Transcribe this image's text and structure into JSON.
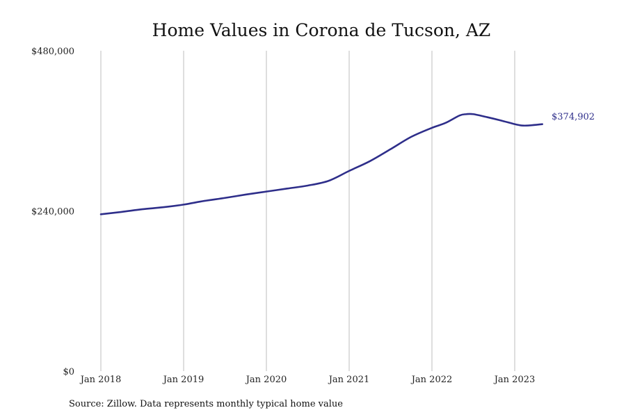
{
  "colors": {
    "line": "#2e2e8a",
    "grid": "#bdbdbd",
    "text": "#222222"
  },
  "chart_data": {
    "type": "line",
    "title": "Home Values in Corona de Tucson, AZ",
    "xlabel": "",
    "ylabel": "",
    "ylim": [
      0,
      480000
    ],
    "xlim": [
      "2018-01",
      "2023-07"
    ],
    "grid": "vertical",
    "legend": "none",
    "y_ticks": [
      {
        "value": 0,
        "label": "$0"
      },
      {
        "value": 240000,
        "label": "$240,000"
      },
      {
        "value": 480000,
        "label": "$480,000"
      }
    ],
    "x_ticks": [
      {
        "date": "2018-01",
        "label": "Jan 2018"
      },
      {
        "date": "2019-01",
        "label": "Jan 2019"
      },
      {
        "date": "2020-01",
        "label": "Jan 2020"
      },
      {
        "date": "2021-01",
        "label": "Jan 2021"
      },
      {
        "date": "2022-01",
        "label": "Jan 2022"
      },
      {
        "date": "2023-01",
        "label": "Jan 2023"
      }
    ],
    "series": [
      {
        "x": [
          "2018-01",
          "2018-04",
          "2018-07",
          "2018-10",
          "2019-01",
          "2019-04",
          "2019-07",
          "2019-10",
          "2020-01",
          "2020-04",
          "2020-07",
          "2020-10",
          "2021-01",
          "2021-04",
          "2021-07",
          "2021-10",
          "2022-01",
          "2022-03",
          "2022-05",
          "2022-06",
          "2022-07",
          "2022-09",
          "2022-11",
          "2023-01",
          "2023-02",
          "2023-03",
          "2023-05"
        ],
        "values": [
          235000,
          238500,
          242500,
          245500,
          249500,
          255000,
          259500,
          264500,
          269000,
          273500,
          278000,
          285000,
          300000,
          314500,
          332500,
          351000,
          364500,
          372000,
          383000,
          385000,
          385000,
          380500,
          375500,
          370000,
          368000,
          368000,
          370000
        ]
      }
    ],
    "end_label": "$374,902",
    "source": "Source: Zillow. Data represents monthly typical home value"
  }
}
